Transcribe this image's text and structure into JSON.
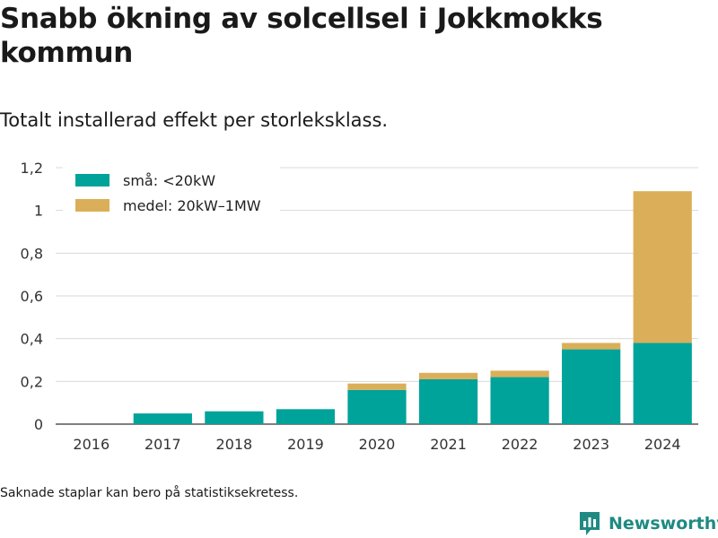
{
  "header": {
    "title": "Snabb ökning av solcellsel i Jokkmokks kommun",
    "subtitle": "Totalt installerad effekt per storleksklass."
  },
  "footer": {
    "note": "Saknade staplar kan bero på statistiksekretess.",
    "brand": "Newsworthy"
  },
  "colors": {
    "small": "#00a39a",
    "medium": "#dbaf59",
    "grid": "#d9d9d9",
    "brand": "#1f8a82"
  },
  "icons": {
    "brand_logo": "bar-chart-icon"
  },
  "chart_data": {
    "type": "bar",
    "stacked": true,
    "title": "Snabb ökning av solcellsel i Jokkmokks kommun",
    "subtitle": "Totalt installerad effekt per storleksklass.",
    "categories": [
      "2016",
      "2017",
      "2018",
      "2019",
      "2020",
      "2021",
      "2022",
      "2023",
      "2024"
    ],
    "series": [
      {
        "name": "små: <20kW",
        "color": "#00a39a",
        "values": [
          0,
          0.05,
          0.06,
          0.07,
          0.16,
          0.21,
          0.22,
          0.35,
          0.38
        ]
      },
      {
        "name": "medel: 20kW–1MW",
        "color": "#dbaf59",
        "values": [
          0,
          0,
          0,
          0,
          0.03,
          0.03,
          0.03,
          0.03,
          0.71
        ]
      }
    ],
    "y_ticks": [
      "0",
      "0,2",
      "0,4",
      "0,6",
      "0,8",
      "1",
      "1,2"
    ],
    "ylim": [
      0,
      1.2
    ],
    "grid": true,
    "legend_position": "top-left"
  }
}
